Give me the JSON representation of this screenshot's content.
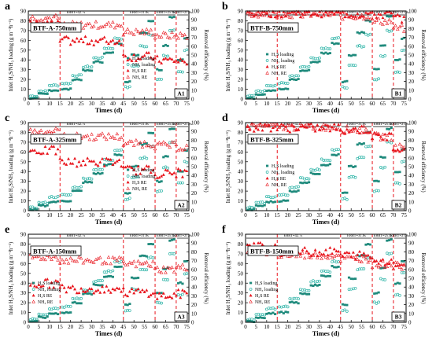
{
  "figure": {
    "shared_axes": {
      "xlabel": "Times (d)",
      "ylabel_left": "Inlet H₂S/NH₃ loading (g m⁻³h⁻¹)",
      "ylabel_right": "Removal efficiency (%)",
      "x_ticks": [
        "0",
        "5",
        "10",
        "15",
        "20",
        "25",
        "30",
        "35",
        "40",
        "45",
        "50",
        "55",
        "60",
        "65",
        "70",
        "75"
      ],
      "y_left_ticks": [
        "0",
        "10",
        "20",
        "30",
        "40",
        "50",
        "60",
        "70",
        "80",
        "90"
      ],
      "y_right_ticks": [
        "0",
        "10",
        "20",
        "30",
        "40",
        "50",
        "60",
        "70",
        "80",
        "90",
        "100"
      ],
      "phase_labels": [
        "EBRT=42.7s",
        "EBRT=31.8s",
        "EBRT=25.4s",
        "EBRT=21.8s"
      ],
      "phase_boundaries_days": [
        15,
        45,
        60,
        70
      ],
      "legend": [
        "H₂S loading",
        "NH₃ loading",
        "H₂S RE",
        "NH₃ RE"
      ]
    },
    "colors": {
      "h2s_loading": "#1f8a7c",
      "nh3_loading": "#2bb3a6",
      "h2s_re": "#e8141c",
      "nh3_re": "#e8141c",
      "phase_line": "#e8141c",
      "axis": "#000000"
    }
  },
  "chart_data": [
    {
      "panel_letter": "a",
      "title": "BTF-A-750mm",
      "tag": "A1",
      "legend_pos": "right-middle",
      "type": "scatter",
      "xlim": [
        0,
        76
      ],
      "ylim": [
        0,
        90
      ],
      "y2lim": [
        0,
        100
      ],
      "h2s_re_by_phase": [
        84,
        66,
        48,
        44,
        43
      ],
      "nh3_re_by_phase": [
        92,
        84,
        76,
        72,
        72
      ]
    },
    {
      "panel_letter": "b",
      "title": "BTF-B-750mm",
      "tag": "B1",
      "legend_pos": "left-middle",
      "type": "scatter",
      "xlim": [
        0,
        76
      ],
      "ylim": [
        0,
        90
      ],
      "y2lim": [
        0,
        100
      ],
      "h2s_re_by_phase": [
        98,
        98,
        97,
        96,
        92
      ],
      "nh3_re_by_phase": [
        97,
        96,
        94,
        88,
        80
      ]
    },
    {
      "panel_letter": "c",
      "title": "BTF-A-325mm",
      "tag": "A2",
      "legend_pos": "right-middle",
      "type": "scatter",
      "xlim": [
        0,
        76
      ],
      "ylim": [
        0,
        90
      ],
      "y2lim": [
        0,
        100
      ],
      "h2s_re_by_phase": [
        68,
        55,
        46,
        42,
        43
      ],
      "nh3_re_by_phase": [
        90,
        84,
        76,
        74,
        72
      ]
    },
    {
      "panel_letter": "d",
      "title": "BTF-B-325mm",
      "tag": "B2",
      "legend_pos": "left-middle",
      "type": "scatter",
      "xlim": [
        0,
        76
      ],
      "ylim": [
        0,
        90
      ],
      "y2lim": [
        0,
        100
      ],
      "h2s_re_by_phase": [
        95,
        94,
        92,
        84,
        72
      ],
      "nh3_re_by_phase": [
        96,
        95,
        92,
        84,
        72
      ]
    },
    {
      "panel_letter": "e",
      "title": "BTF-A-150mm",
      "tag": "A3",
      "legend_pos": "left-bottom",
      "type": "scatter",
      "xlim": [
        0,
        76
      ],
      "ylim": [
        0,
        90
      ],
      "y2lim": [
        0,
        100
      ],
      "h2s_re_by_phase": [
        44,
        38,
        34,
        30,
        32
      ],
      "nh3_re_by_phase": [
        74,
        70,
        66,
        60,
        62
      ]
    },
    {
      "panel_letter": "f",
      "title": "BTF-B-150mm",
      "tag": "B3",
      "legend_pos": "left-bottom",
      "type": "scatter",
      "xlim": [
        0,
        76
      ],
      "ylim": [
        0,
        90
      ],
      "y2lim": [
        0,
        100
      ],
      "h2s_re_by_phase": [
        86,
        80,
        76,
        70,
        66
      ],
      "nh3_re_by_phase": [
        80,
        76,
        72,
        66,
        64
      ]
    }
  ]
}
